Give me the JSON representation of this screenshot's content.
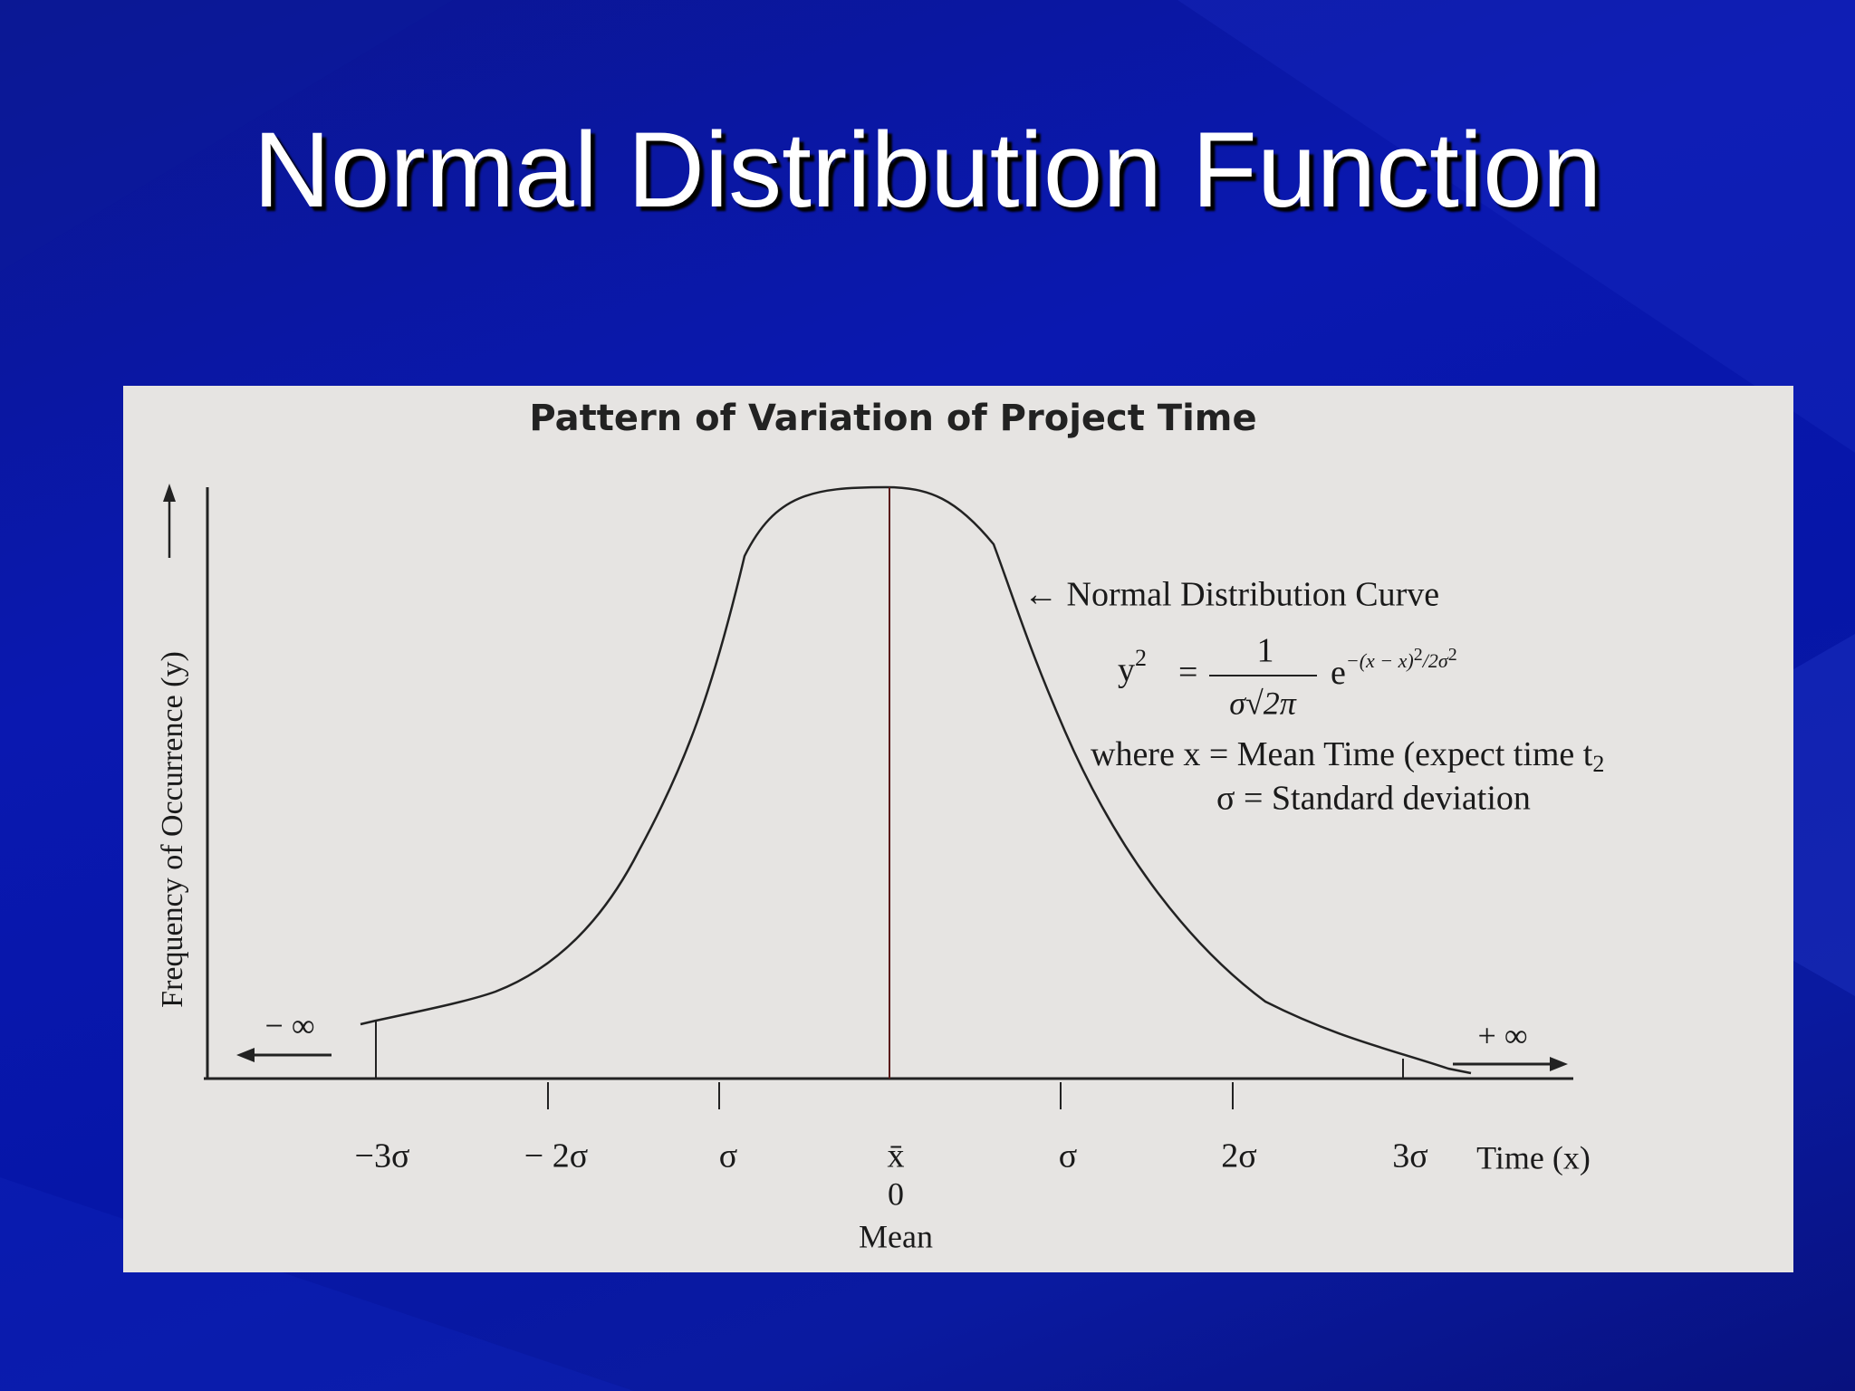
{
  "slide_title": "Normal Distribution Function",
  "figure": {
    "title": "Pattern of Variation of Project Time",
    "y_axis_label": "Frequency of Occurrence (y)",
    "curve_label": "← Normal Distribution Curve",
    "formula": {
      "lhs": "y",
      "lhs_exponent": "2",
      "equals": "=",
      "numerator": "1",
      "denominator": "σ√2π",
      "base": "e",
      "exponent": "−(x − x)",
      "exponent_power": "2",
      "exponent_rest": "/2σ",
      "exponent_rest_power": "2"
    },
    "where_line": {
      "text": "where x = Mean Time (expect time t",
      "subscript": "2"
    },
    "sigma_line": "σ = Standard deviation",
    "minus_infinity": "− ∞",
    "plus_infinity": "+ ∞",
    "x_labels": [
      "−3σ",
      "− 2σ",
      "σ",
      "x̄",
      "σ",
      "2σ",
      "3σ"
    ],
    "zero_label": "0",
    "mean_label": "Mean",
    "x_axis_label": "Time (x)"
  }
}
